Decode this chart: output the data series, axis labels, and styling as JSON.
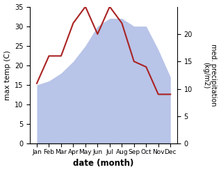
{
  "months": [
    "Jan",
    "Feb",
    "Mar",
    "Apr",
    "May",
    "Jun",
    "Jul",
    "Aug",
    "Sep",
    "Oct",
    "Nov",
    "Dec"
  ],
  "temp": [
    15,
    16,
    18,
    21,
    25,
    30,
    32,
    32,
    30,
    30,
    24,
    17
  ],
  "precip": [
    11,
    16,
    16,
    22,
    25,
    20,
    25,
    22,
    15,
    14,
    9,
    9
  ],
  "fill_color": "#b8c4e8",
  "precip_color": "#aa2222",
  "temp_ylim": [
    0,
    35
  ],
  "precip_ylim": [
    0,
    25
  ],
  "xlabel": "date (month)",
  "ylabel_left": "max temp (C)",
  "ylabel_right": "med. precipitation\n(kg/m2)"
}
